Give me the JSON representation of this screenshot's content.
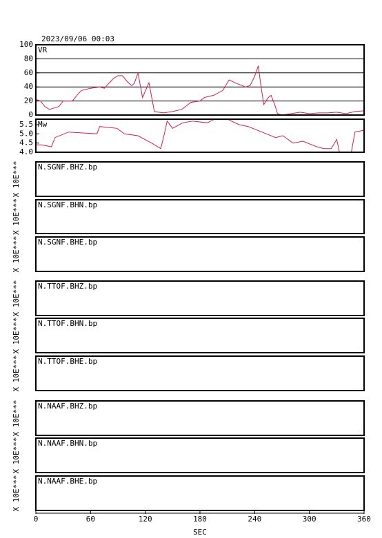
{
  "chart_data": [
    {
      "type": "line",
      "title": "VR",
      "annotation": "2023/09/06 00:03",
      "color": "#d81e4a",
      "grid": true,
      "xlim": [
        0,
        360
      ],
      "x": [
        0,
        5,
        10,
        15,
        20,
        25,
        30,
        40,
        45,
        50,
        60,
        70,
        75,
        80,
        85,
        90,
        95,
        100,
        105,
        108,
        112,
        117,
        124,
        130,
        140,
        150,
        160,
        170,
        180,
        185,
        195,
        205,
        212,
        220,
        230,
        235,
        240,
        244,
        247,
        250,
        255,
        258,
        262,
        265,
        270,
        280,
        290,
        300,
        310,
        320,
        330,
        340,
        350,
        360
      ],
      "values": [
        22,
        20,
        12,
        8,
        10,
        12,
        20,
        20,
        28,
        35,
        38,
        40,
        38,
        45,
        52,
        56,
        56,
        48,
        42,
        45,
        60,
        25,
        46,
        5,
        3,
        5,
        8,
        18,
        20,
        25,
        28,
        35,
        50,
        45,
        40,
        42,
        55,
        70,
        40,
        15,
        25,
        28,
        15,
        2,
        0,
        2,
        4,
        2,
        3,
        3,
        4,
        2,
        5,
        6
      ],
      "ylim": [
        0,
        100
      ],
      "yticks": [
        0,
        20,
        40,
        60,
        80,
        100
      ]
    },
    {
      "type": "line",
      "title": "Mw",
      "color": "#d81e4a",
      "grid": false,
      "xlim": [
        0,
        360
      ],
      "x": [
        0,
        6,
        17,
        21,
        36,
        67,
        70,
        89,
        97,
        112,
        127,
        137,
        141,
        144,
        150,
        161,
        172,
        188,
        196,
        210,
        223,
        233,
        248,
        263,
        271,
        282,
        293,
        308,
        316,
        324,
        330,
        333,
        346,
        350,
        360
      ],
      "values": [
        4.4,
        4.4,
        4.3,
        4.8,
        5.1,
        5.0,
        5.4,
        5.3,
        5.0,
        4.9,
        4.5,
        4.2,
        5.0,
        5.7,
        5.3,
        5.6,
        5.7,
        5.6,
        5.8,
        5.8,
        5.5,
        5.4,
        5.1,
        4.8,
        4.9,
        4.5,
        4.6,
        4.3,
        4.2,
        4.2,
        4.7,
        4.0,
        4.0,
        5.1,
        5.2
      ],
      "ylim": [
        4.0,
        5.8
      ],
      "yticks": [
        {
          "value": 4.0,
          "label": "4.0"
        },
        4.5,
        {
          "value": 5.0,
          "label": "5.0"
        },
        5.5
      ]
    },
    {
      "type": "trace",
      "title": "N.SGNF.BHZ.bp",
      "ylabel": "X 10E***"
    },
    {
      "type": "trace",
      "title": "N.SGNF.BHN.bp",
      "ylabel": "X 10E***"
    },
    {
      "type": "trace",
      "title": "N.SGNF.BHE.bp",
      "ylabel": "X 10E***"
    },
    {
      "type": "trace",
      "title": "N.TTOF.BHZ.bp",
      "ylabel": "X 10E***"
    },
    {
      "type": "trace",
      "title": "N.TTOF.BHN.bp",
      "ylabel": "X 10E***"
    },
    {
      "type": "trace",
      "title": "N.TTOF.BHE.bp",
      "ylabel": "X 10E***"
    },
    {
      "type": "trace",
      "title": "N.NAAF.BHZ.bp",
      "ylabel": "X 10E***"
    },
    {
      "type": "trace",
      "title": "N.NAAF.BHN.bp",
      "ylabel": "X 10E***"
    },
    {
      "type": "trace",
      "title": "N.NAAF.BHE.bp",
      "ylabel": "X 10E***",
      "xlim": [
        0,
        360
      ],
      "xticks": [
        0,
        60,
        120,
        180,
        240,
        300,
        360
      ],
      "xlabel": "SEC"
    }
  ]
}
